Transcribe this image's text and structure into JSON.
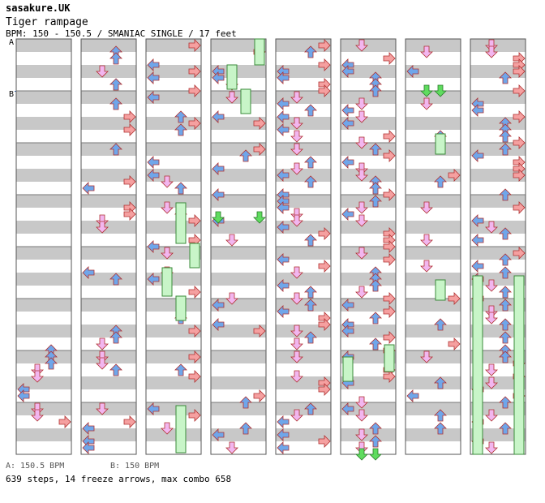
{
  "header": {
    "artist": "sasakure.UK",
    "title": "Tiger rampage",
    "bpm_line": "BPM: 150 - 150.5 / SMANIAC SINGLE / 17 feet"
  },
  "markers": {
    "a": "A",
    "b": "B"
  },
  "legend": {
    "a": "A: 150.5 BPM",
    "b": "B: 150 BPM"
  },
  "stats": "639 steps, 14 freeze arrows, max combo 658",
  "colors": {
    "stripe": "#c8c8c8",
    "left": "#6fa6ea",
    "down": "#f2b6ef",
    "up": "#6fa6ea",
    "right": "#f5a0a0",
    "freeze": "#c8f5c8",
    "shock": "#5fdc5f"
  },
  "chart_data": {
    "type": "step_chart",
    "columns": 8,
    "lanes": [
      "left",
      "down",
      "up",
      "right"
    ],
    "sections": [
      {
        "marker": "A",
        "bpm": 150.5
      },
      {
        "marker": "B",
        "bpm": 150
      }
    ],
    "steps": 639,
    "freeze_arrows": 14,
    "max_combo": 658
  }
}
